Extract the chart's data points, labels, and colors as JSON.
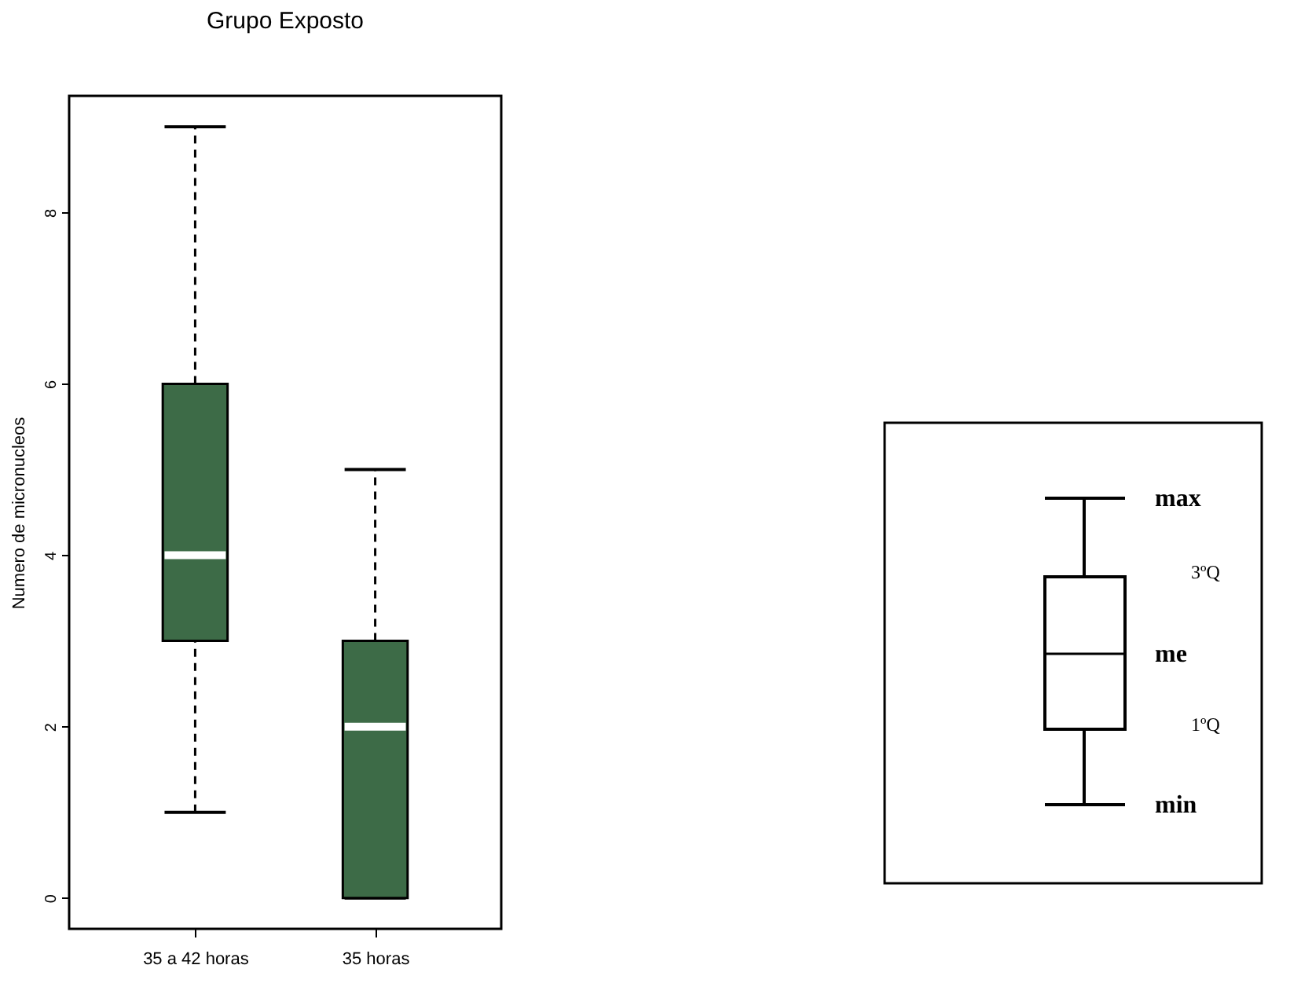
{
  "chart_data": [
    {
      "type": "box",
      "title": "Grupo Exposto",
      "ylabel": "Numero de micronucleos",
      "categories": [
        "35 a 42 horas",
        "35 horas"
      ],
      "boxes": [
        {
          "low": 1,
          "q1": 3,
          "median": 4,
          "q3": 6,
          "high": 9
        },
        {
          "low": 0,
          "q1": 0,
          "median": 2,
          "q3": 3,
          "high": 5
        }
      ],
      "colors": [
        "#3d6b47",
        "#3d6b47"
      ],
      "ylim": [
        -0.36,
        9.36
      ],
      "yticks": [
        0,
        2,
        4,
        6,
        8
      ],
      "grid": false,
      "line_style": "dashed"
    },
    {
      "type": "other",
      "annotations": [
        "max",
        "3ºQ",
        "me",
        "1ºQ",
        "min"
      ]
    }
  ]
}
